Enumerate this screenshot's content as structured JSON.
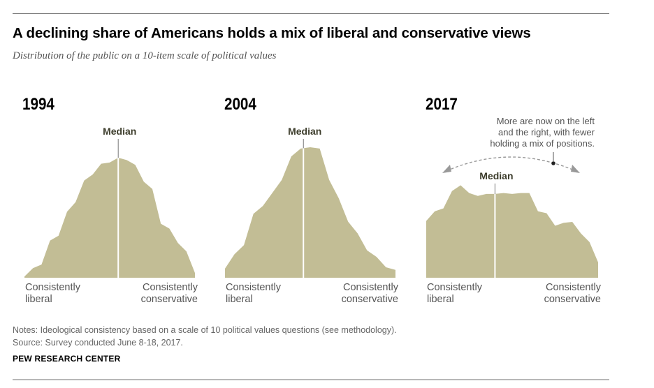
{
  "title": "A declining share of Americans holds a mix of liberal and conservative views",
  "subtitle": "Distribution of the public on a 10-item scale of political values",
  "notes": "Notes: Ideological consistency based on a scale of 10 political values questions (see methodology).",
  "source": "Source: Survey conducted June 8-18, 2017.",
  "brand": "PEW RESEARCH CENTER",
  "colors": {
    "fill": "#c2bd95",
    "text": "#000000",
    "median_label": "#3d3d2c",
    "muted": "#555555",
    "arrow": "#999999"
  },
  "chart_data": [
    {
      "type": "area",
      "title": "1994",
      "median_label": "Median",
      "x_left_label": [
        "Consistently",
        "liberal"
      ],
      "x_right_label": [
        "Consistently",
        "conservative"
      ],
      "values": [
        0.01,
        0.08,
        0.11,
        0.31,
        0.35,
        0.55,
        0.63,
        0.81,
        0.86,
        0.95,
        0.96,
        1.0,
        0.98,
        0.94,
        0.8,
        0.74,
        0.45,
        0.41,
        0.29,
        0.22,
        0.04
      ],
      "median_position": 0.55
    },
    {
      "type": "area",
      "title": "2004",
      "median_label": "Median",
      "x_left_label": [
        "Consistently",
        "liberal"
      ],
      "x_right_label": [
        "Consistently",
        "conservative"
      ],
      "values": [
        0.07,
        0.18,
        0.25,
        0.49,
        0.55,
        0.65,
        0.75,
        0.93,
        0.99,
        1.0,
        0.99,
        0.75,
        0.61,
        0.43,
        0.34,
        0.21,
        0.16,
        0.08,
        0.06
      ],
      "median_position": 0.46
    },
    {
      "type": "area",
      "title": "2017",
      "median_label": "Median",
      "x_left_label": [
        "Consistently",
        "liberal"
      ],
      "x_right_label": [
        "Consistently",
        "conservative"
      ],
      "annotation": [
        "More are now on the left",
        "and the right, with fewer",
        "holding a mix of positions."
      ],
      "values": [
        0.59,
        0.69,
        0.72,
        0.9,
        0.96,
        0.88,
        0.85,
        0.87,
        0.87,
        0.88,
        0.87,
        0.88,
        0.88,
        0.69,
        0.67,
        0.54,
        0.57,
        0.58,
        0.46,
        0.37,
        0.16
      ],
      "median_position": 0.4
    }
  ]
}
